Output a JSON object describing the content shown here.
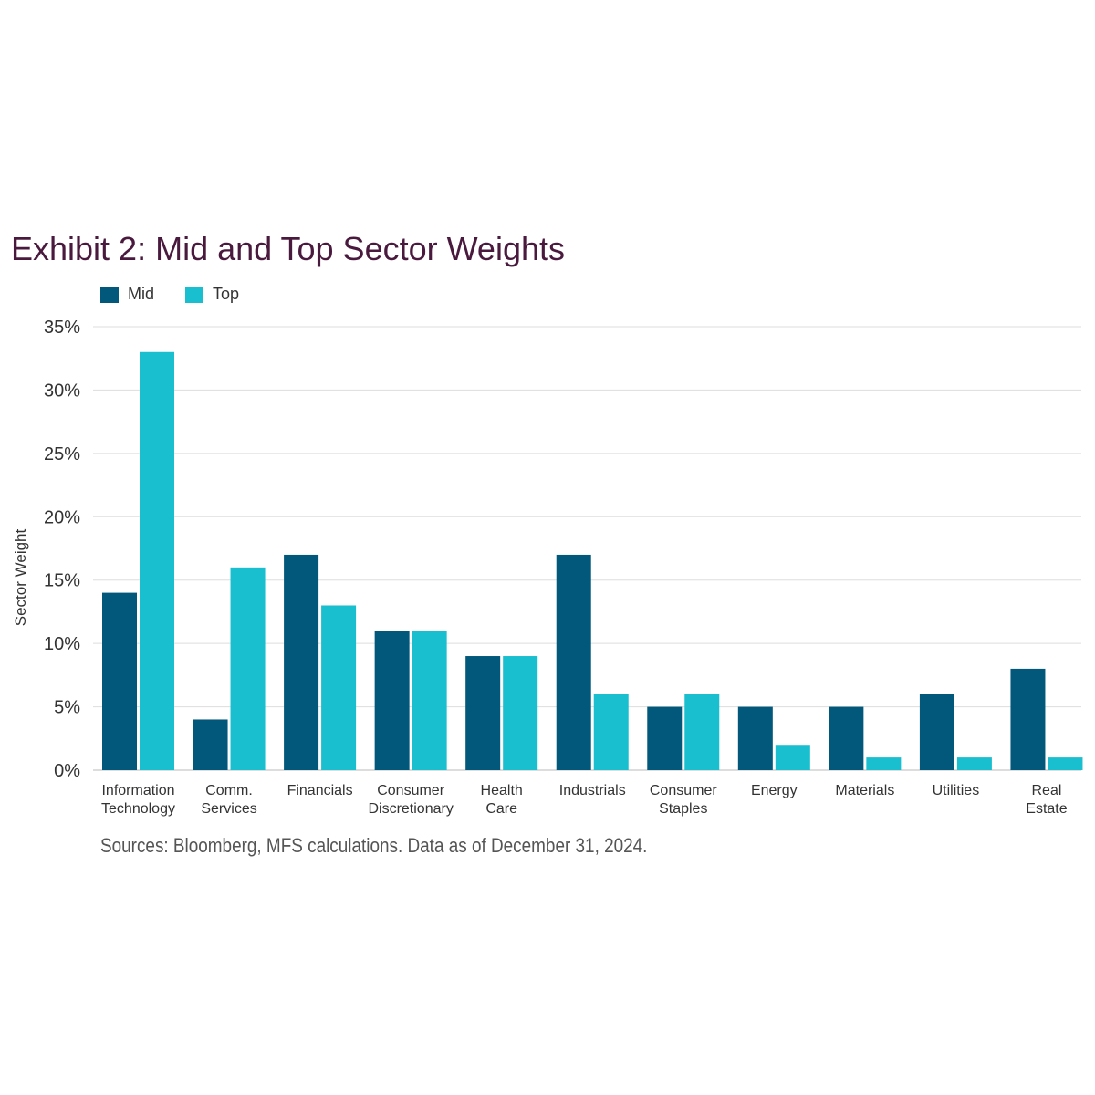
{
  "colors": {
    "mid": "#02587a",
    "top": "#19becf",
    "grid": "#dddddd",
    "title": "#4a1a3e"
  },
  "chart_data": {
    "type": "bar",
    "title": "Exhibit 2: Mid and Top Sector Weights",
    "ylabel": "Sector Weight",
    "xlabel": "",
    "ylim": [
      0,
      35
    ],
    "yticks": [
      "0%",
      "5%",
      "10%",
      "15%",
      "20%",
      "25%",
      "30%",
      "35%"
    ],
    "grid": true,
    "legend_position": "top-left",
    "categories": [
      [
        "Information",
        "Technology"
      ],
      [
        "Comm.",
        "Services"
      ],
      [
        "Financials"
      ],
      [
        "Consumer",
        "Discretionary"
      ],
      [
        "Health",
        "Care"
      ],
      [
        "Industrials"
      ],
      [
        "Consumer",
        "Staples"
      ],
      [
        "Energy"
      ],
      [
        "Materials"
      ],
      [
        "Utilities"
      ],
      [
        "Real",
        "Estate"
      ]
    ],
    "series": [
      {
        "name": "Mid",
        "values": [
          14,
          4,
          17,
          11,
          9,
          17,
          5,
          5,
          5,
          6,
          8
        ]
      },
      {
        "name": "Top",
        "values": [
          33,
          16,
          13,
          11,
          9,
          6,
          6,
          2,
          1,
          1,
          1
        ]
      }
    ],
    "source": "Sources: Bloomberg, MFS calculations. Data as of December 31, 2024."
  }
}
